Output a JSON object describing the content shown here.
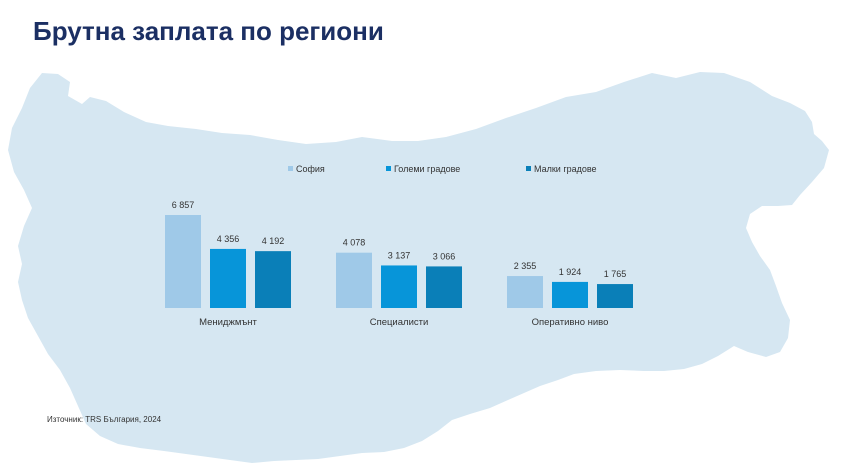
{
  "page": {
    "title": "Брутна заплата по региони",
    "source": "Източник: TRS България, 2024",
    "map_color": "#d6e7f2"
  },
  "chart_data": {
    "type": "bar",
    "title": "",
    "xlabel": "",
    "ylabel": "",
    "categories": [
      "Мениджмънт",
      "Специалисти",
      "Оперативно ниво"
    ],
    "series": [
      {
        "name": "София",
        "values": [
          6857,
          4078,
          2355
        ],
        "color": "#9fc9e8"
      },
      {
        "name": "Големи градове",
        "values": [
          4356,
          3137,
          1924
        ],
        "color": "#0795d9"
      },
      {
        "name": "Малки градове",
        "values": [
          4192,
          3066,
          1765
        ],
        "color": "#0a7fb8"
      }
    ],
    "value_labels": [
      [
        "6 857",
        "4 078",
        "2 355"
      ],
      [
        "4 356",
        "3 137",
        "1 924"
      ],
      [
        "4 192",
        "3 066",
        "1 765"
      ]
    ],
    "ylim": [
      0,
      6857
    ],
    "grid": false,
    "legend_position": "top"
  }
}
